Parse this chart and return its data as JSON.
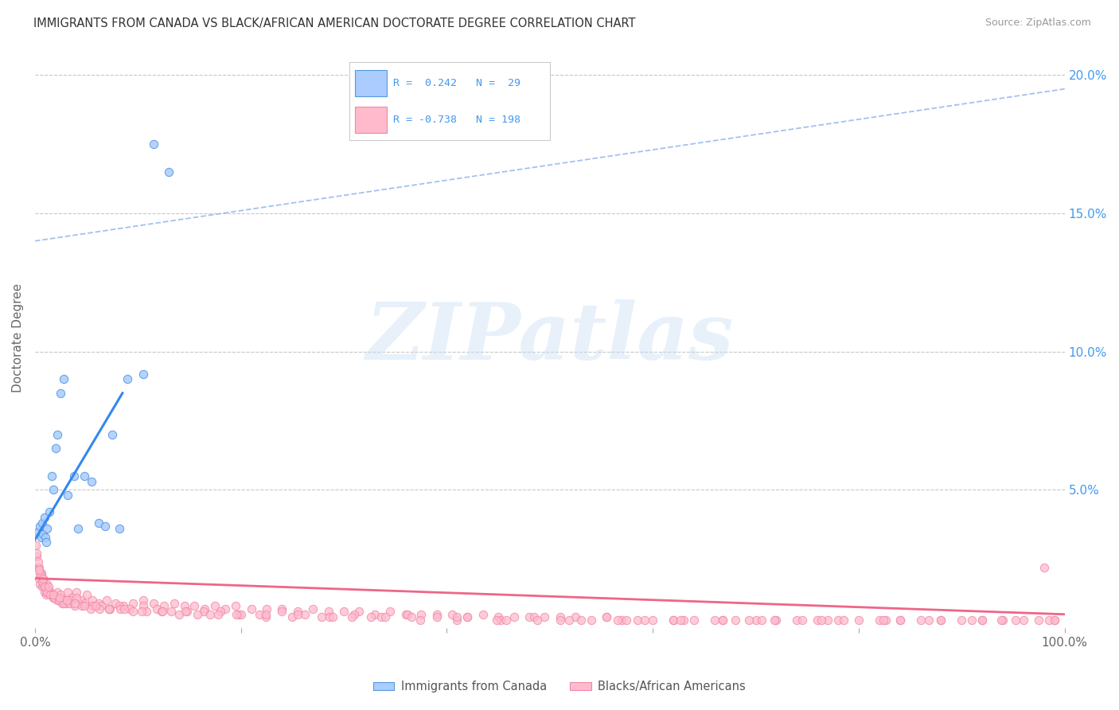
{
  "title": "IMMIGRANTS FROM CANADA VS BLACK/AFRICAN AMERICAN DOCTORATE DEGREE CORRELATION CHART",
  "source": "Source: ZipAtlas.com",
  "ylabel": "Doctorate Degree",
  "xlim": [
    0,
    1.0
  ],
  "ylim": [
    0,
    0.21
  ],
  "x_ticks": [
    0.0,
    0.2,
    0.4,
    0.6,
    0.8,
    1.0
  ],
  "y_ticks": [
    0.0,
    0.05,
    0.1,
    0.15,
    0.2
  ],
  "background_color": "#ffffff",
  "grid_color": "#c8c8c8",
  "watermark_text": "ZIPatlas",
  "legend_color": "#4499ee",
  "scatter1_facecolor": "#aaccff",
  "scatter1_edgecolor": "#5599dd",
  "scatter2_facecolor": "#ffbbcc",
  "scatter2_edgecolor": "#ee88aa",
  "line1_color": "#3388ee",
  "line2_color": "#ee6688",
  "dashed_line_color": "#99bbee",
  "canada_x": [
    0.003,
    0.005,
    0.006,
    0.007,
    0.008,
    0.009,
    0.01,
    0.011,
    0.012,
    0.014,
    0.016,
    0.018,
    0.02,
    0.022,
    0.025,
    0.028,
    0.032,
    0.038,
    0.042,
    0.048,
    0.055,
    0.062,
    0.068,
    0.075,
    0.082,
    0.09,
    0.105,
    0.115,
    0.13
  ],
  "canada_y": [
    0.035,
    0.037,
    0.033,
    0.038,
    0.034,
    0.04,
    0.033,
    0.031,
    0.036,
    0.042,
    0.055,
    0.05,
    0.065,
    0.07,
    0.085,
    0.09,
    0.048,
    0.055,
    0.036,
    0.055,
    0.053,
    0.038,
    0.037,
    0.07,
    0.036,
    0.09,
    0.092,
    0.175,
    0.165
  ],
  "black_x": [
    0.001,
    0.002,
    0.003,
    0.004,
    0.005,
    0.006,
    0.007,
    0.008,
    0.009,
    0.01,
    0.011,
    0.012,
    0.013,
    0.015,
    0.017,
    0.019,
    0.022,
    0.025,
    0.028,
    0.032,
    0.036,
    0.04,
    0.045,
    0.05,
    0.056,
    0.062,
    0.07,
    0.078,
    0.086,
    0.095,
    0.105,
    0.115,
    0.125,
    0.135,
    0.145,
    0.155,
    0.165,
    0.175,
    0.185,
    0.195,
    0.21,
    0.225,
    0.24,
    0.255,
    0.27,
    0.285,
    0.3,
    0.315,
    0.33,
    0.345,
    0.36,
    0.375,
    0.39,
    0.405,
    0.42,
    0.435,
    0.45,
    0.465,
    0.48,
    0.495,
    0.51,
    0.525,
    0.54,
    0.555,
    0.57,
    0.585,
    0.6,
    0.62,
    0.64,
    0.66,
    0.68,
    0.7,
    0.72,
    0.74,
    0.76,
    0.78,
    0.8,
    0.82,
    0.84,
    0.86,
    0.88,
    0.9,
    0.92,
    0.94,
    0.96,
    0.975,
    0.99,
    0.002,
    0.004,
    0.006,
    0.008,
    0.01,
    0.012,
    0.015,
    0.018,
    0.022,
    0.026,
    0.03,
    0.035,
    0.04,
    0.048,
    0.056,
    0.064,
    0.073,
    0.082,
    0.092,
    0.105,
    0.118,
    0.132,
    0.148,
    0.164,
    0.18,
    0.198,
    0.218,
    0.24,
    0.262,
    0.286,
    0.31,
    0.336,
    0.362,
    0.39,
    0.42,
    0.452,
    0.485,
    0.519,
    0.555,
    0.592,
    0.63,
    0.668,
    0.706,
    0.745,
    0.785,
    0.826,
    0.868,
    0.91,
    0.952,
    0.985,
    0.003,
    0.005,
    0.007,
    0.009,
    0.012,
    0.015,
    0.019,
    0.023,
    0.028,
    0.033,
    0.039,
    0.046,
    0.054,
    0.063,
    0.072,
    0.083,
    0.095,
    0.108,
    0.123,
    0.14,
    0.158,
    0.178,
    0.2,
    0.224,
    0.25,
    0.278,
    0.308,
    0.34,
    0.374,
    0.41,
    0.448,
    0.488,
    0.53,
    0.574,
    0.62,
    0.668,
    0.718,
    0.77,
    0.824,
    0.88,
    0.938,
    0.99,
    0.004,
    0.008,
    0.013,
    0.018,
    0.024,
    0.031,
    0.039,
    0.048,
    0.059,
    0.072,
    0.087,
    0.104,
    0.124,
    0.146,
    0.17,
    0.196,
    0.224,
    0.255,
    0.289,
    0.326,
    0.366,
    0.41,
    0.458,
    0.51,
    0.566,
    0.627,
    0.693,
    0.764,
    0.84,
    0.92,
    0.98
  ],
  "black_y": [
    0.03,
    0.026,
    0.022,
    0.018,
    0.016,
    0.02,
    0.015,
    0.018,
    0.013,
    0.015,
    0.012,
    0.016,
    0.014,
    0.013,
    0.012,
    0.011,
    0.013,
    0.012,
    0.01,
    0.013,
    0.011,
    0.013,
    0.01,
    0.012,
    0.01,
    0.009,
    0.01,
    0.009,
    0.008,
    0.009,
    0.01,
    0.009,
    0.008,
    0.009,
    0.008,
    0.008,
    0.007,
    0.008,
    0.007,
    0.008,
    0.007,
    0.007,
    0.007,
    0.006,
    0.007,
    0.006,
    0.006,
    0.006,
    0.005,
    0.006,
    0.005,
    0.005,
    0.005,
    0.005,
    0.004,
    0.005,
    0.004,
    0.004,
    0.004,
    0.004,
    0.004,
    0.004,
    0.003,
    0.004,
    0.003,
    0.003,
    0.003,
    0.003,
    0.003,
    0.003,
    0.003,
    0.003,
    0.003,
    0.003,
    0.003,
    0.003,
    0.003,
    0.003,
    0.003,
    0.003,
    0.003,
    0.003,
    0.003,
    0.003,
    0.003,
    0.003,
    0.003,
    0.027,
    0.022,
    0.019,
    0.016,
    0.015,
    0.013,
    0.012,
    0.011,
    0.01,
    0.009,
    0.009,
    0.01,
    0.011,
    0.009,
    0.008,
    0.008,
    0.007,
    0.008,
    0.007,
    0.008,
    0.007,
    0.006,
    0.006,
    0.006,
    0.006,
    0.005,
    0.005,
    0.006,
    0.005,
    0.004,
    0.005,
    0.004,
    0.005,
    0.004,
    0.004,
    0.003,
    0.004,
    0.003,
    0.004,
    0.003,
    0.003,
    0.003,
    0.003,
    0.003,
    0.003,
    0.003,
    0.003,
    0.003,
    0.003,
    0.003,
    0.024,
    0.02,
    0.017,
    0.015,
    0.013,
    0.012,
    0.011,
    0.01,
    0.009,
    0.009,
    0.008,
    0.008,
    0.007,
    0.007,
    0.007,
    0.007,
    0.006,
    0.006,
    0.006,
    0.005,
    0.005,
    0.005,
    0.005,
    0.004,
    0.004,
    0.004,
    0.004,
    0.004,
    0.003,
    0.003,
    0.003,
    0.003,
    0.003,
    0.003,
    0.003,
    0.003,
    0.003,
    0.003,
    0.003,
    0.003,
    0.003,
    0.003,
    0.021,
    0.018,
    0.015,
    0.012,
    0.011,
    0.01,
    0.009,
    0.008,
    0.008,
    0.007,
    0.007,
    0.006,
    0.006,
    0.006,
    0.005,
    0.005,
    0.005,
    0.005,
    0.004,
    0.004,
    0.004,
    0.004,
    0.003,
    0.003,
    0.003,
    0.003,
    0.003,
    0.003,
    0.003,
    0.003,
    0.022
  ],
  "dashed_line_x0": 0.0,
  "dashed_line_y0": 0.14,
  "dashed_line_x1": 1.0,
  "dashed_line_y1": 0.195,
  "canada_trendline_x0": 0.0,
  "canada_trendline_y0": 0.032,
  "canada_trendline_x1": 0.085,
  "canada_trendline_y1": 0.085,
  "black_trendline_x0": 0.0,
  "black_trendline_y0": 0.018,
  "black_trendline_x1": 1.0,
  "black_trendline_y1": 0.005
}
